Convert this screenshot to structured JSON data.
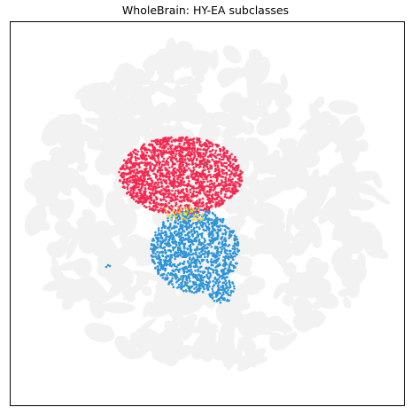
{
  "chart_data": {
    "type": "scatter",
    "title": "WholeBrain: HY-EA subclasses",
    "xlabel": "",
    "ylabel": "",
    "grid": false,
    "legend": "none",
    "background_color": "#f2f2f2",
    "series": [
      {
        "color": "#f2f2f2",
        "region": "whole-brain embedding background"
      },
      {
        "color": "#f5284f",
        "region": "upper cluster"
      },
      {
        "color": "#2f94d8",
        "region": "lower cluster"
      },
      {
        "color": "#f2d22a",
        "region": "small boundary cells"
      },
      {
        "color": "#1fa67a",
        "region": "sparse lower-left cells"
      }
    ]
  }
}
